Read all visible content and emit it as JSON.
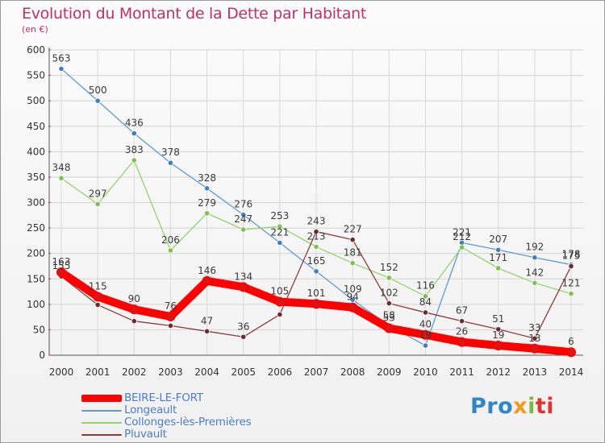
{
  "header": {
    "title": "Evolution du Montant de la Dette par Habitant",
    "unit": "(en €)"
  },
  "logo": {
    "parts": [
      "Pro",
      "x",
      "i",
      "ti"
    ],
    "colors": [
      "#2f86c8",
      "#f29a1e",
      "#7cb83c",
      "#e2322f"
    ]
  },
  "chart_data": {
    "type": "line",
    "title": "Evolution du Montant de la Dette par Habitant",
    "ylabel": "(en €)",
    "xlabel": "",
    "x": [
      2000,
      2001,
      2002,
      2003,
      2004,
      2005,
      2006,
      2007,
      2008,
      2009,
      2010,
      2011,
      2012,
      2013,
      2014
    ],
    "ylim": [
      0,
      600
    ],
    "yticks": [
      0,
      50,
      100,
      150,
      200,
      250,
      300,
      350,
      400,
      450,
      500,
      550,
      600
    ],
    "grid": true,
    "legend_position": "bottom-left",
    "series": [
      {
        "name": "BEIRE-LE-FORT",
        "color": "#ff0000",
        "marker_color": "#d81818",
        "emphasis": true,
        "values": [
          163,
          115,
          90,
          76,
          146,
          134,
          105,
          101,
          94,
          53,
          40,
          26,
          19,
          13,
          6
        ],
        "labels": [
          "163",
          "115",
          "90",
          "76",
          "146",
          "134",
          "105",
          "101",
          "94",
          "53",
          "40",
          "26",
          "19",
          "13",
          "6"
        ]
      },
      {
        "name": "Longeault",
        "color": "#5c9bd6",
        "marker_color": "#3d7fc0",
        "emphasis": false,
        "values": [
          563,
          500,
          436,
          378,
          328,
          276,
          221,
          165,
          109,
          58,
          19,
          221,
          207,
          192,
          178
        ],
        "labels": [
          "563",
          "500",
          "436",
          "378",
          "328",
          "276",
          "221",
          "165",
          "109",
          "58",
          "19",
          "221",
          "207",
          "192",
          "178"
        ]
      },
      {
        "name": "Collonges-lès-Premières",
        "color": "#93d36c",
        "marker_color": "#7cc24f",
        "emphasis": false,
        "values": [
          348,
          297,
          383,
          206,
          279,
          247,
          253,
          213,
          181,
          152,
          116,
          212,
          171,
          142,
          121
        ],
        "labels": [
          "348",
          "297",
          "383",
          "206",
          "279",
          "247",
          "253",
          "213",
          "181",
          "152",
          "116",
          "212",
          "171",
          "142",
          "121"
        ]
      },
      {
        "name": "Pluvault",
        "color": "#8a3b3b",
        "marker_color": "#6e2a2a",
        "emphasis": false,
        "values": [
          155,
          99,
          67,
          58,
          47,
          36,
          80,
          243,
          227,
          102,
          84,
          67,
          51,
          33,
          175
        ],
        "labels": [
          "155",
          "",
          "",
          "",
          "47",
          "36",
          "",
          "243",
          "227",
          "102",
          "84",
          "67",
          "51",
          "33",
          "175"
        ]
      }
    ]
  }
}
